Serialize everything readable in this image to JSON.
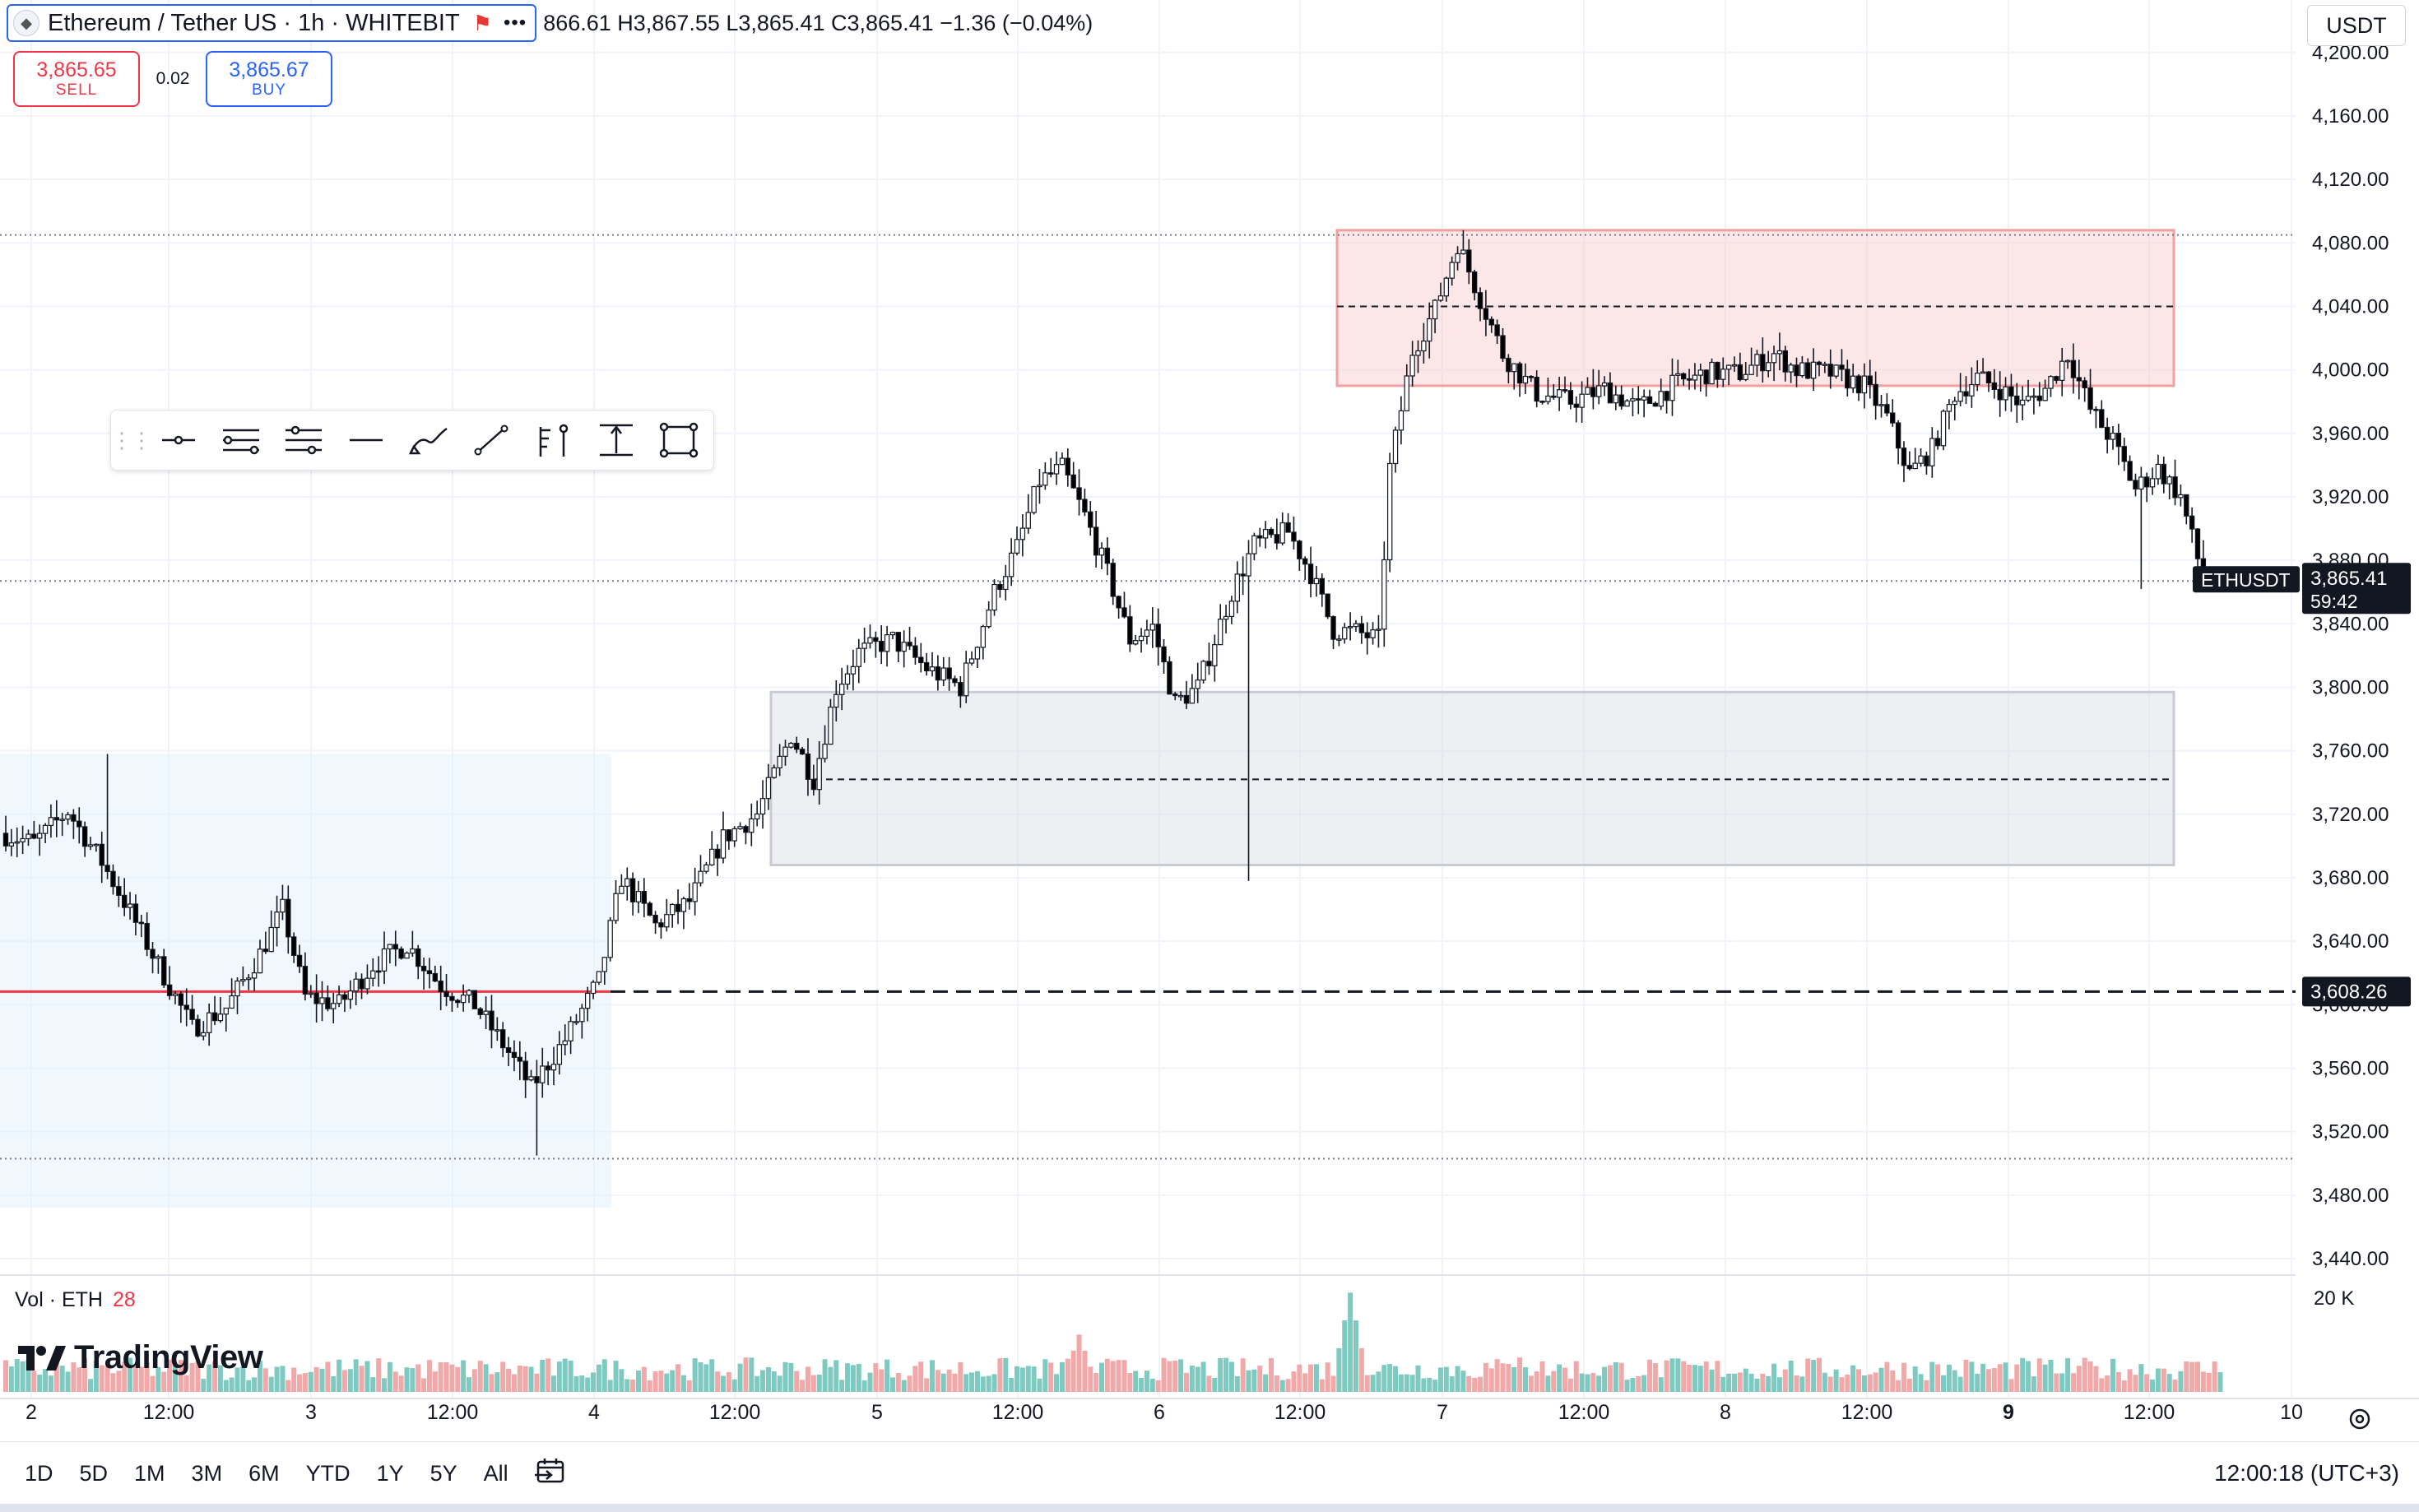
{
  "legend": {
    "symbol": "Ethereum / Tether US · 1h · WHITEBIT",
    "ohlc": "866.61  H3,867.55  L3,865.41  C3,865.41  −1.36 (−0.04%)"
  },
  "trade": {
    "sell_price": "3,865.65",
    "sell_label": "SELL",
    "spread": "0.02",
    "buy_price": "3,865.67",
    "buy_label": "BUY"
  },
  "currency": "USDT",
  "price_axis": {
    "ticks": [
      "4,200.00",
      "4,160.00",
      "4,120.00",
      "4,080.00",
      "4,040.00",
      "4,000.00",
      "3,960.00",
      "3,920.00",
      "3,880.00",
      "3,840.00",
      "3,800.00",
      "3,760.00",
      "3,720.00",
      "3,680.00",
      "3,640.00",
      "3,600.00",
      "3,560.00",
      "3,520.00",
      "3,480.00",
      "3,440.00"
    ],
    "last_symbol": "ETHUSDT",
    "last_price": "3,865.41",
    "countdown": "59:42",
    "alert_price": "3,608.26"
  },
  "time_axis": [
    "2",
    "12:00",
    "3",
    "12:00",
    "4",
    "12:00",
    "5",
    "12:00",
    "6",
    "12:00",
    "7",
    "12:00",
    "8",
    "12:00",
    "9",
    "12:00",
    "10"
  ],
  "volume": {
    "label": "Vol · ETH",
    "value": "28",
    "axis_tick": "20 K"
  },
  "brand": "TradingView",
  "ranges": [
    "1D",
    "5D",
    "1M",
    "3M",
    "6M",
    "YTD",
    "1Y",
    "5Y",
    "All"
  ],
  "clock": "12:00:18 (UTC+3)",
  "toolbar_icons": [
    "drag-handle-icon",
    "horizontal-ray-icon",
    "parallel-channel-icon",
    "fib-retracement-icon",
    "horizontal-line-icon",
    "brush-icon",
    "trend-line-icon",
    "long-position-icon",
    "price-range-icon",
    "rectangle-icon"
  ],
  "colors": {
    "up": "#ffffff",
    "down": "#000000",
    "vol_up": "#7ec9c0",
    "vol_down": "#f0a8a8",
    "alert_line": "#f23645",
    "supply_zone": "#f6c9c9",
    "demand_zone": "#d8dbe3",
    "range_zone": "#e3f0fb"
  },
  "chart_data": {
    "type": "candlestick",
    "timeframe": "1h",
    "ylim": [
      3420,
      4215
    ],
    "drawings": {
      "supply_zone": {
        "from": 3990,
        "to": 4088,
        "mid": 4040
      },
      "demand_zone": {
        "from": 3688,
        "to": 3797,
        "mid": 3742
      },
      "range_zone": {
        "from": 3472,
        "to": 3758
      },
      "alert_line": 3608.26,
      "dotted_levels": [
        4085,
        3867,
        3503
      ]
    },
    "path": [
      [
        0,
        3708
      ],
      [
        6,
        3702
      ],
      [
        12,
        3722
      ],
      [
        18,
        3690
      ],
      [
        22,
        3665
      ],
      [
        28,
        3625
      ],
      [
        34,
        3585
      ],
      [
        40,
        3598
      ],
      [
        46,
        3632
      ],
      [
        50,
        3660
      ],
      [
        54,
        3605
      ],
      [
        60,
        3600
      ],
      [
        66,
        3625
      ],
      [
        72,
        3638
      ],
      [
        78,
        3612
      ],
      [
        84,
        3600
      ],
      [
        90,
        3570
      ],
      [
        94,
        3548
      ],
      [
        100,
        3578
      ],
      [
        106,
        3615
      ],
      [
        110,
        3680
      ],
      [
        116,
        3650
      ],
      [
        122,
        3665
      ],
      [
        128,
        3705
      ],
      [
        134,
        3720
      ],
      [
        140,
        3770
      ],
      [
        144,
        3742
      ],
      [
        148,
        3800
      ],
      [
        152,
        3822
      ],
      [
        158,
        3830
      ],
      [
        164,
        3812
      ],
      [
        170,
        3800
      ],
      [
        176,
        3860
      ],
      [
        180,
        3888
      ],
      [
        184,
        3930
      ],
      [
        188,
        3938
      ],
      [
        192,
        3908
      ],
      [
        196,
        3872
      ],
      [
        200,
        3830
      ],
      [
        204,
        3838
      ],
      [
        208,
        3790
      ],
      [
        212,
        3800
      ],
      [
        218,
        3860
      ],
      [
        222,
        3890
      ],
      [
        228,
        3898
      ],
      [
        232,
        3872
      ],
      [
        236,
        3836
      ],
      [
        240,
        3835
      ],
      [
        244,
        3830
      ],
      [
        246,
        3938
      ],
      [
        250,
        4012
      ],
      [
        254,
        4038
      ],
      [
        258,
        4080
      ],
      [
        262,
        4045
      ],
      [
        266,
        4010
      ],
      [
        272,
        3985
      ],
      [
        278,
        3980
      ],
      [
        284,
        3988
      ],
      [
        290,
        3976
      ],
      [
        296,
        3990
      ],
      [
        302,
        3998
      ],
      [
        308,
        3998
      ],
      [
        314,
        4010
      ],
      [
        318,
        4000
      ],
      [
        324,
        3998
      ],
      [
        330,
        3990
      ],
      [
        334,
        3970
      ],
      [
        338,
        3935
      ],
      [
        342,
        3950
      ],
      [
        346,
        3985
      ],
      [
        350,
        3995
      ],
      [
        354,
        3988
      ],
      [
        358,
        3978
      ],
      [
        362,
        3988
      ],
      [
        366,
        4010
      ],
      [
        370,
        3975
      ],
      [
        374,
        3955
      ],
      [
        378,
        3925
      ],
      [
        382,
        3938
      ],
      [
        386,
        3920
      ],
      [
        390,
        3868
      ],
      [
        392,
        3866
      ]
    ],
    "volume": {
      "spikes": [
        [
          190,
          15
        ],
        [
          228,
          4
        ],
        [
          238,
          26
        ],
        [
          268,
          9
        ]
      ],
      "base": 6
    }
  }
}
